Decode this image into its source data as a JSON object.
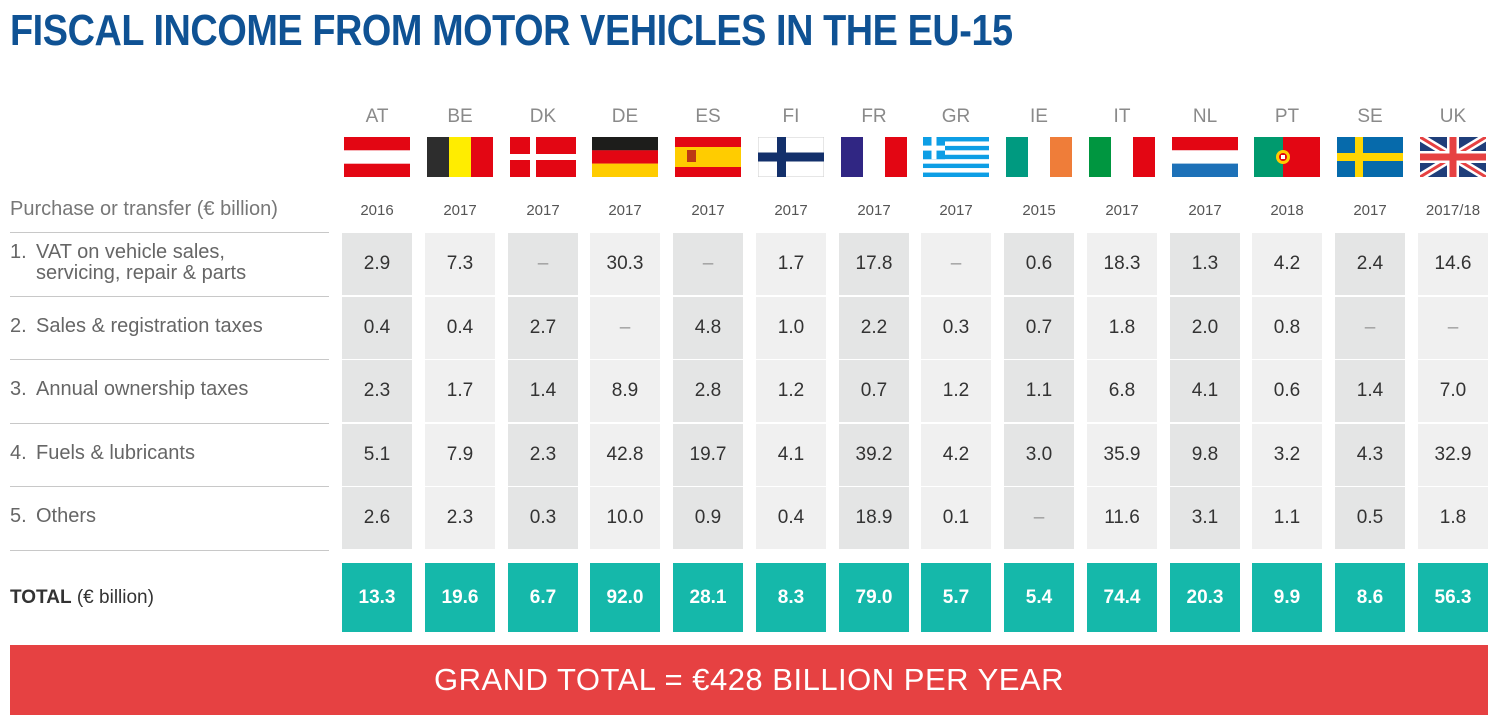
{
  "title": "FISCAL INCOME FROM MOTOR VEHICLES IN THE EU-15",
  "header_label": "Purchase or transfer (€ billion)",
  "total_label_bold": "TOTAL",
  "total_label_rest": " (€ billion)",
  "grand_total": "GRAND TOTAL = €428 BILLION PER YEAR",
  "colors": {
    "title": "#0f5294",
    "total_bg": "#15b8aa",
    "grand_bg": "#e64142",
    "cell_dark": "#e4e5e5",
    "cell_light": "#f0f0f0"
  },
  "chart_data": {
    "type": "table",
    "title": "FISCAL INCOME FROM MOTOR VEHICLES IN THE EU-15",
    "unit": "€ billion",
    "countries": [
      {
        "code": "AT",
        "flag": "austria-flag",
        "year": "2016"
      },
      {
        "code": "BE",
        "flag": "belgium-flag",
        "year": "2017"
      },
      {
        "code": "DK",
        "flag": "denmark-flag",
        "year": "2017"
      },
      {
        "code": "DE",
        "flag": "germany-flag",
        "year": "2017"
      },
      {
        "code": "ES",
        "flag": "spain-flag",
        "year": "2017"
      },
      {
        "code": "FI",
        "flag": "finland-flag",
        "year": "2017"
      },
      {
        "code": "FR",
        "flag": "france-flag",
        "year": "2017"
      },
      {
        "code": "GR",
        "flag": "greece-flag",
        "year": "2017"
      },
      {
        "code": "IE",
        "flag": "ireland-flag",
        "year": "2015"
      },
      {
        "code": "IT",
        "flag": "italy-flag",
        "year": "2017"
      },
      {
        "code": "NL",
        "flag": "netherlands-flag",
        "year": "2017"
      },
      {
        "code": "PT",
        "flag": "portugal-flag",
        "year": "2018"
      },
      {
        "code": "SE",
        "flag": "sweden-flag",
        "year": "2017"
      },
      {
        "code": "UK",
        "flag": "uk-flag",
        "year": "2017/18"
      }
    ],
    "rows": [
      {
        "num": "1.",
        "label_lines": [
          "VAT on vehicle sales,",
          "servicing, repair & parts"
        ],
        "values": [
          "2.9",
          "7.3",
          "–",
          "30.3",
          "–",
          "1.7",
          "17.8",
          "–",
          "0.6",
          "18.3",
          "1.3",
          "4.2",
          "2.4",
          "14.6"
        ]
      },
      {
        "num": "2.",
        "label_lines": [
          "Sales & registration taxes"
        ],
        "values": [
          "0.4",
          "0.4",
          "2.7",
          "–",
          "4.8",
          "1.0",
          "2.2",
          "0.3",
          "0.7",
          "1.8",
          "2.0",
          "0.8",
          "–",
          "–"
        ]
      },
      {
        "num": "3.",
        "label_lines": [
          "Annual ownership taxes"
        ],
        "values": [
          "2.3",
          "1.7",
          "1.4",
          "8.9",
          "2.8",
          "1.2",
          "0.7",
          "1.2",
          "1.1",
          "6.8",
          "4.1",
          "0.6",
          "1.4",
          "7.0"
        ]
      },
      {
        "num": "4.",
        "label_lines": [
          "Fuels & lubricants"
        ],
        "values": [
          "5.1",
          "7.9",
          "2.3",
          "42.8",
          "19.7",
          "4.1",
          "39.2",
          "4.2",
          "3.0",
          "35.9",
          "9.8",
          "3.2",
          "4.3",
          "32.9"
        ]
      },
      {
        "num": "5.",
        "label_lines": [
          "Others"
        ],
        "values": [
          "2.6",
          "2.3",
          "0.3",
          "10.0",
          "0.9",
          "0.4",
          "18.9",
          "0.1",
          "–",
          "11.6",
          "3.1",
          "1.1",
          "0.5",
          "1.8"
        ]
      }
    ],
    "totals": [
      "13.3",
      "19.6",
      "6.7",
      "92.0",
      "28.1",
      "8.3",
      "79.0",
      "5.7",
      "5.4",
      "74.4",
      "20.3",
      "9.9",
      "8.6",
      "56.3"
    ],
    "grand_total_value": 428
  }
}
